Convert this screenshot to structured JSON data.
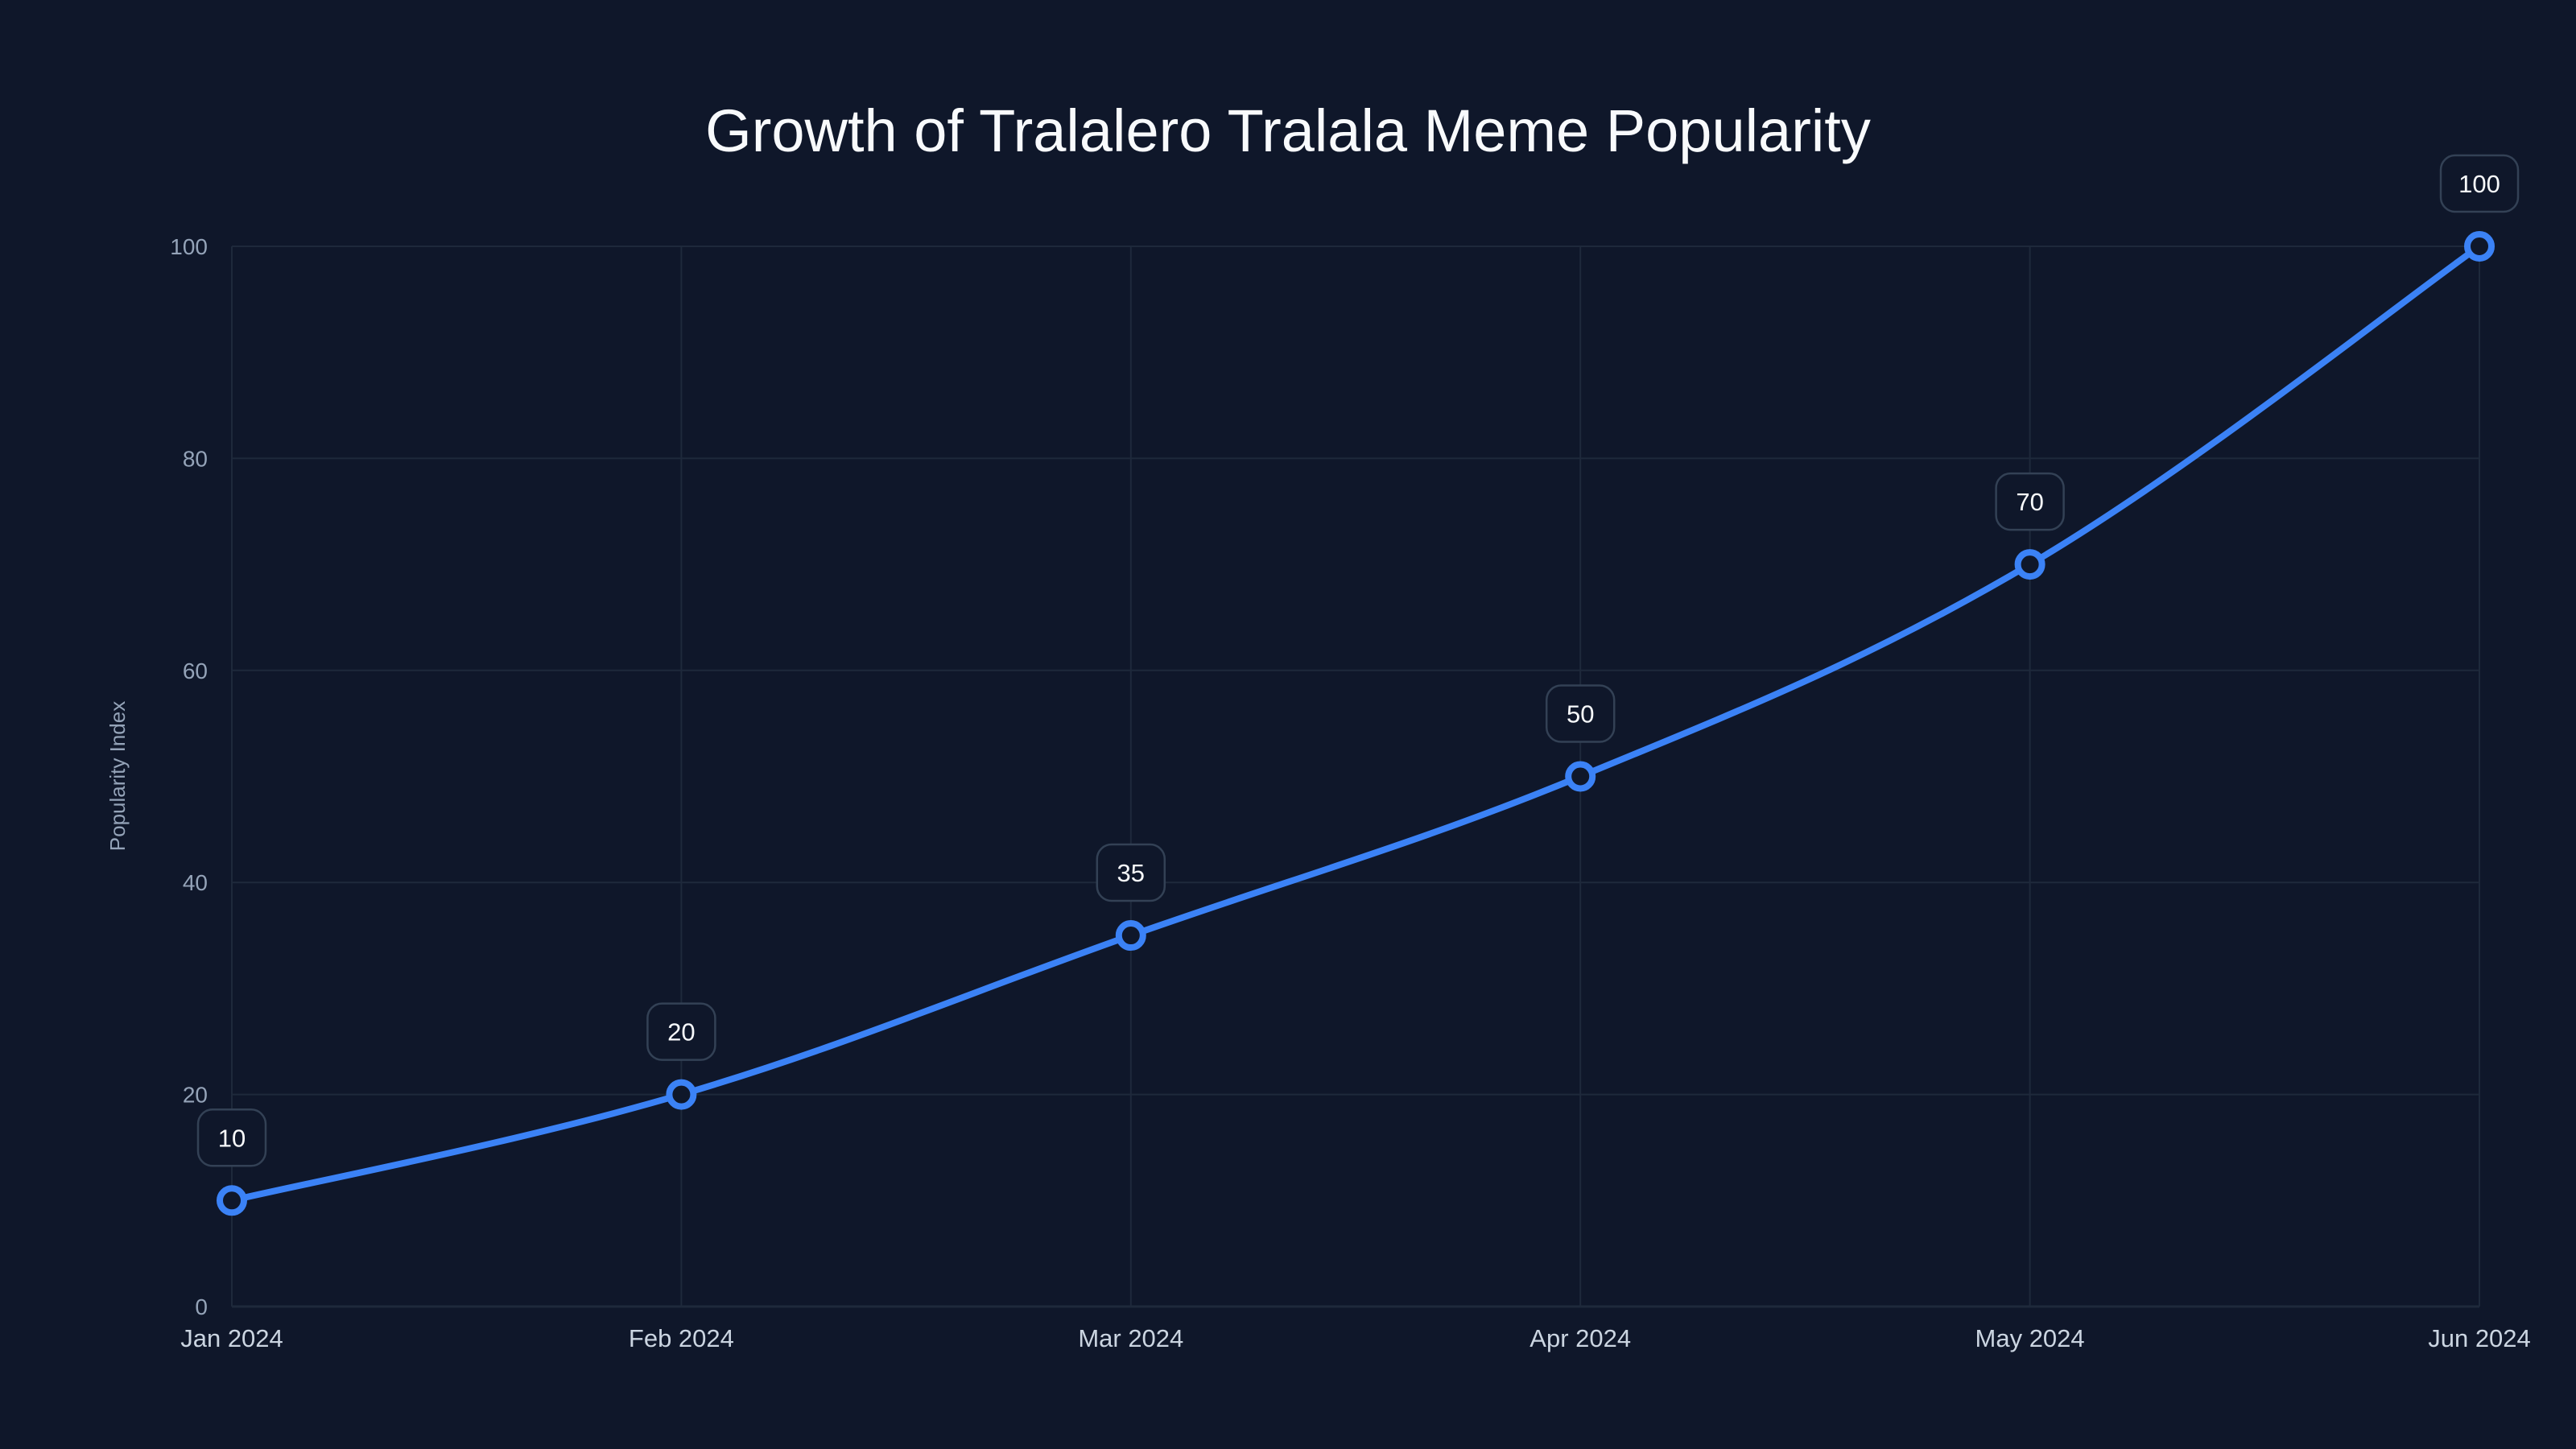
{
  "chart_data": {
    "type": "line",
    "title": "Growth of Tralalero Tralala Meme Popularity",
    "xlabel": "",
    "ylabel": "Popularity Index",
    "categories": [
      "Jan 2024",
      "Feb 2024",
      "Mar 2024",
      "Apr 2024",
      "May 2024",
      "Jun 2024"
    ],
    "series": [
      {
        "name": "Popularity Index",
        "values": [
          10,
          20,
          35,
          50,
          70,
          100
        ],
        "color": "#3b82f6"
      }
    ],
    "ylim": [
      0,
      100
    ],
    "yticks": [
      0,
      20,
      40,
      60,
      80,
      100
    ],
    "grid": true,
    "legend": "none",
    "data_labels": true,
    "smooth": true
  },
  "colors": {
    "background": "#0f172a",
    "line": "#3b82f6",
    "grid": "#1e293b",
    "label_border": "#334155",
    "tick_text": "#94a3b8",
    "category_text": "#cbd5e1",
    "title_text": "#f8fafc"
  }
}
